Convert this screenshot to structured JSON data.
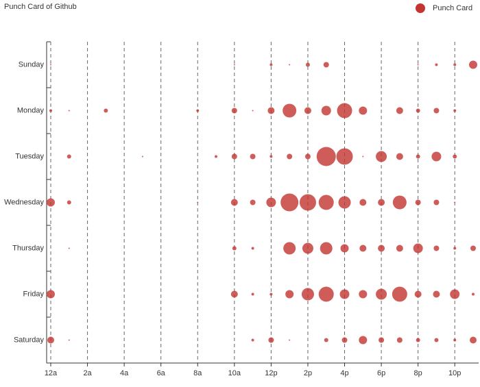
{
  "chart_data": {
    "type": "punchcard",
    "title": "Punch Card of Github",
    "categories": [
      "12a",
      null,
      "2a",
      null,
      "4a",
      null,
      "6a",
      null,
      "8a",
      null,
      "10a",
      null,
      "12p",
      null,
      "2p",
      null,
      "4p",
      null,
      "6p",
      null,
      "8p",
      null,
      "10p",
      null
    ],
    "rows": [
      "Sunday",
      "Monday",
      "Tuesday",
      "Wednesday",
      "Thursday",
      "Friday",
      "Saturday"
    ],
    "series": [
      {
        "name": "Punch Card",
        "color": "#c23531",
        "values": [
          [
            1,
            0,
            0,
            0,
            0,
            0,
            0,
            0,
            0,
            0,
            1,
            0,
            2,
            1,
            3,
            4,
            0,
            0,
            0,
            0,
            1,
            2,
            2,
            6
          ],
          [
            2,
            1,
            0,
            3,
            0,
            0,
            0,
            0,
            2,
            0,
            4,
            1,
            5,
            10,
            5,
            7,
            11,
            6,
            0,
            5,
            3,
            4,
            2,
            0
          ],
          [
            0,
            3,
            0,
            0,
            0,
            1,
            0,
            0,
            0,
            2,
            4,
            4,
            2,
            4,
            4,
            14,
            12,
            1,
            8,
            5,
            3,
            7,
            3,
            0
          ],
          [
            6,
            3,
            0,
            0,
            0,
            0,
            0,
            0,
            1,
            0,
            5,
            4,
            7,
            13,
            12,
            11,
            9,
            5,
            5,
            10,
            4,
            4,
            1,
            0
          ],
          [
            0,
            1,
            0,
            0,
            0,
            0,
            0,
            0,
            0,
            0,
            3,
            2,
            0,
            9,
            8,
            9,
            6,
            5,
            5,
            5,
            7,
            4,
            2,
            4
          ],
          [
            6,
            0,
            0,
            0,
            0,
            0,
            0,
            0,
            0,
            0,
            5,
            2,
            2,
            6,
            9,
            11,
            7,
            6,
            8,
            11,
            5,
            5,
            7,
            2
          ],
          [
            5,
            1,
            0,
            0,
            0,
            0,
            0,
            0,
            0,
            0,
            0,
            2,
            4,
            1,
            0,
            3,
            4,
            6,
            4,
            4,
            3,
            3,
            2,
            5
          ]
        ]
      }
    ]
  }
}
